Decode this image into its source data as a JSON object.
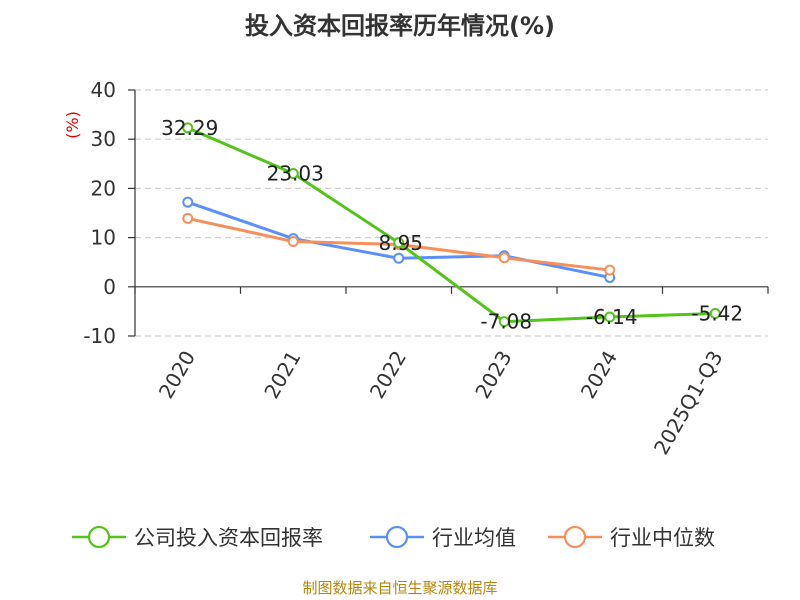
{
  "chart_data": {
    "type": "line",
    "title": "投入资本回报率历年情况(%)",
    "ylabel": "(%)",
    "xlabel": "",
    "categories": [
      "2020",
      "2021",
      "2022",
      "2023",
      "2024",
      "2025Q1-Q3"
    ],
    "ylim": [
      -10,
      40
    ],
    "yticks": [
      -10,
      0,
      10,
      20,
      30,
      40
    ],
    "grid": true,
    "legend_position": "bottom",
    "series": [
      {
        "name": "公司投入资本回报率",
        "color": "#52c41a",
        "values": [
          32.29,
          23.03,
          8.95,
          -7.08,
          -6.14,
          -5.42
        ],
        "labels": [
          "32.29",
          "23.03",
          "8.95",
          "-7.08",
          "-6.14",
          "-5.42"
        ]
      },
      {
        "name": "行业均值",
        "color": "#5b8ff9",
        "values": [
          17.2,
          9.8,
          5.8,
          6.3,
          1.9,
          null
        ]
      },
      {
        "name": "行业中位数",
        "color": "#f6905a",
        "values": [
          13.9,
          9.2,
          8.6,
          5.9,
          3.4,
          null
        ]
      }
    ],
    "source": "制图数据来自恒生聚源数据库"
  }
}
